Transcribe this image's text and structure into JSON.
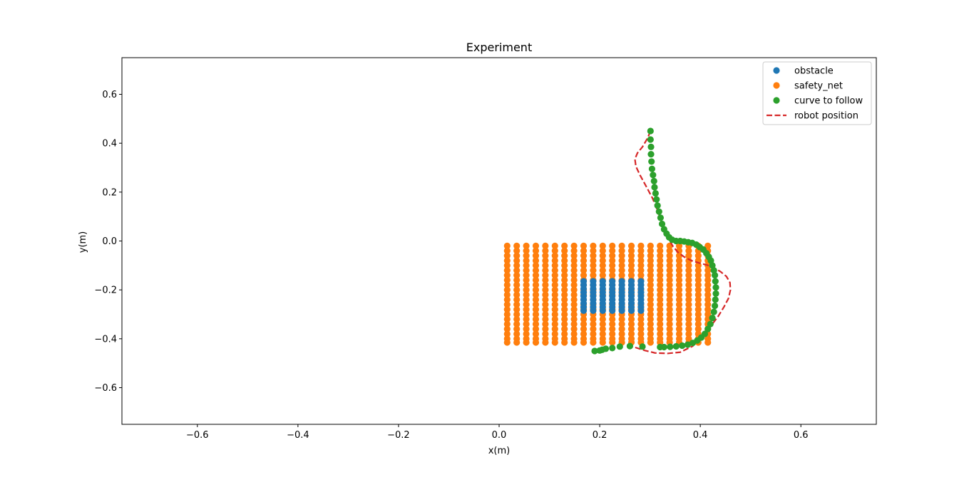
{
  "chart_data": {
    "type": "scatter",
    "title": "Experiment",
    "xlabel": "x(m)",
    "ylabel": "y(m)",
    "xlim": [
      -0.75,
      0.75
    ],
    "ylim": [
      -0.75,
      0.75
    ],
    "xticks": [
      -0.6,
      -0.4,
      -0.2,
      0.0,
      0.2,
      0.4,
      0.6
    ],
    "yticks": [
      -0.6,
      -0.4,
      -0.2,
      0.0,
      0.2,
      0.4,
      0.6
    ],
    "xtick_labels": [
      "−0.6",
      "−0.4",
      "−0.2",
      "0.0",
      "0.2",
      "0.4",
      "0.6"
    ],
    "ytick_labels": [
      "−0.6",
      "−0.4",
      "−0.2",
      "0.0",
      "0.2",
      "0.4",
      "0.6"
    ],
    "grid": false,
    "legend_position": "top-right",
    "series": [
      {
        "name": "obstacle",
        "kind": "points",
        "color": "#1f77b4",
        "grid_x": [
          0.168,
          0.187,
          0.206,
          0.225,
          0.244,
          0.263,
          0.282
        ],
        "grid_y": [
          -0.165,
          -0.18,
          -0.195,
          -0.21,
          -0.225,
          -0.24,
          -0.255,
          -0.27,
          -0.285
        ]
      },
      {
        "name": "safety_net",
        "kind": "points",
        "color": "#ff7f0e",
        "grid_x": [
          0.016,
          0.035,
          0.054,
          0.073,
          0.092,
          0.111,
          0.13,
          0.149,
          0.168,
          0.187,
          0.206,
          0.225,
          0.244,
          0.263,
          0.282,
          0.301,
          0.32,
          0.339,
          0.358,
          0.377,
          0.396,
          0.415
        ],
        "grid_y": [
          -0.02,
          -0.04,
          -0.06,
          -0.08,
          -0.1,
          -0.12,
          -0.14,
          -0.16,
          -0.18,
          -0.2,
          -0.22,
          -0.24,
          -0.26,
          -0.28,
          -0.3,
          -0.32,
          -0.34,
          -0.36,
          -0.38,
          -0.4,
          -0.415
        ]
      },
      {
        "name": "curve to follow",
        "kind": "points",
        "color": "#2ca02c",
        "x": [
          0.301,
          0.301,
          0.302,
          0.302,
          0.303,
          0.304,
          0.306,
          0.308,
          0.309,
          0.311,
          0.313,
          0.315,
          0.318,
          0.321,
          0.324,
          0.328,
          0.333,
          0.338,
          0.344,
          0.352,
          0.36,
          0.368,
          0.376,
          0.384,
          0.392,
          0.399,
          0.406,
          0.412,
          0.417,
          0.421,
          0.424,
          0.427,
          0.429,
          0.43,
          0.431,
          0.431,
          0.43,
          0.429,
          0.427,
          0.424,
          0.42,
          0.415,
          0.409,
          0.402,
          0.394,
          0.385,
          0.375,
          0.364,
          0.352,
          0.34,
          0.328,
          0.32,
          0.285,
          0.26,
          0.24,
          0.225,
          0.212,
          0.205,
          0.2,
          0.19
        ],
        "y": [
          0.45,
          0.415,
          0.385,
          0.355,
          0.325,
          0.295,
          0.27,
          0.245,
          0.22,
          0.195,
          0.17,
          0.145,
          0.12,
          0.095,
          0.07,
          0.048,
          0.03,
          0.015,
          0.005,
          0.0,
          0.0,
          -0.002,
          -0.005,
          -0.008,
          -0.015,
          -0.025,
          -0.035,
          -0.05,
          -0.065,
          -0.08,
          -0.1,
          -0.12,
          -0.14,
          -0.165,
          -0.19,
          -0.215,
          -0.24,
          -0.265,
          -0.29,
          -0.315,
          -0.34,
          -0.36,
          -0.38,
          -0.395,
          -0.407,
          -0.417,
          -0.424,
          -0.428,
          -0.431,
          -0.433,
          -0.434,
          -0.434,
          -0.432,
          -0.43,
          -0.432,
          -0.438,
          -0.441,
          -0.445,
          -0.448,
          -0.45
        ]
      },
      {
        "name": "robot position",
        "kind": "dashed-line",
        "color": "#d62728",
        "x": [
          0.301,
          0.295,
          0.285,
          0.275,
          0.27,
          0.272,
          0.28,
          0.292,
          0.305,
          0.315,
          0.323,
          0.33,
          0.337,
          0.345,
          0.355,
          0.368,
          0.382,
          0.398,
          0.413,
          0.427,
          0.44,
          0.452,
          0.459,
          0.46,
          0.456,
          0.447,
          0.435,
          0.42,
          0.405,
          0.385,
          0.36,
          0.335,
          0.31,
          0.29,
          0.27,
          0.255
        ],
        "y": [
          0.45,
          0.42,
          0.385,
          0.36,
          0.335,
          0.305,
          0.27,
          0.225,
          0.175,
          0.125,
          0.08,
          0.04,
          0.01,
          -0.02,
          -0.045,
          -0.065,
          -0.08,
          -0.09,
          -0.098,
          -0.11,
          -0.125,
          -0.145,
          -0.17,
          -0.2,
          -0.235,
          -0.27,
          -0.31,
          -0.35,
          -0.39,
          -0.43,
          -0.455,
          -0.46,
          -0.458,
          -0.448,
          -0.435,
          -0.43
        ]
      }
    ]
  }
}
